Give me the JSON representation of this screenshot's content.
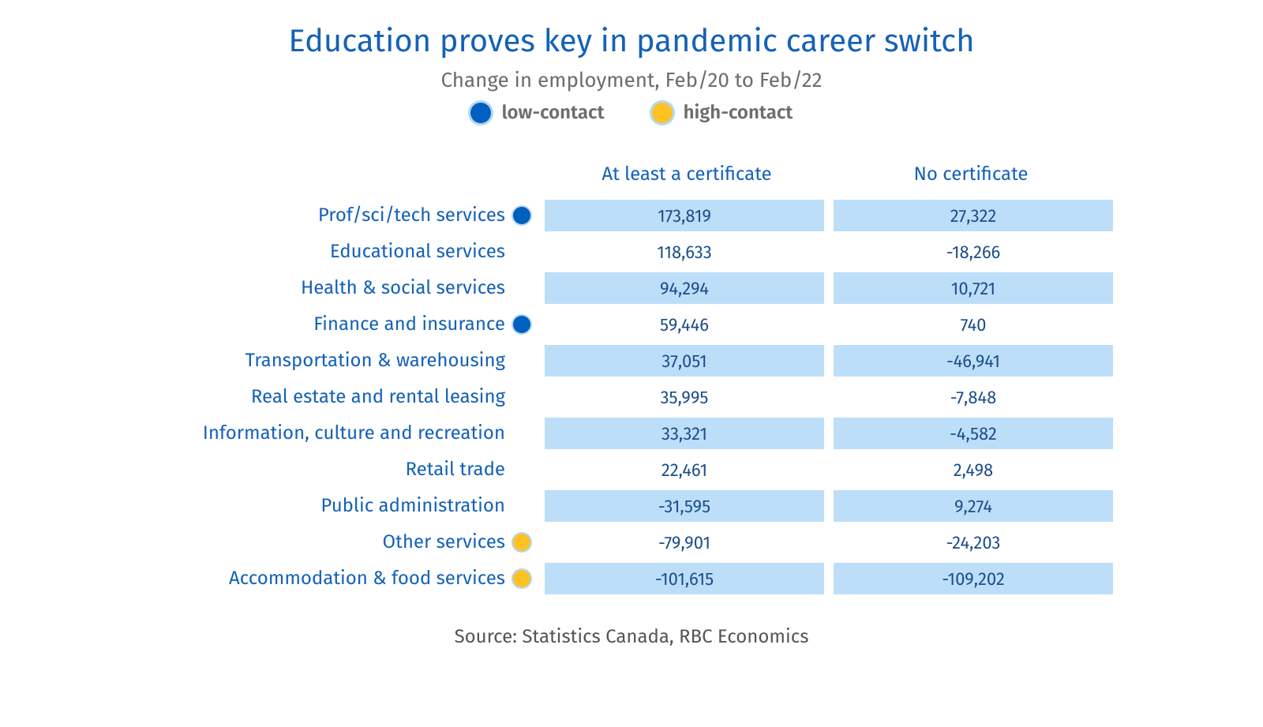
{
  "title": "Education proves key in pandemic career switch",
  "subtitle": "Change in employment, Feb/20 to Feb/22",
  "legend": [
    {
      "label": "low-contact",
      "color": "#0060c0",
      "border": "#b5d7f5"
    },
    {
      "label": "high-contact",
      "color": "#ffc224",
      "border": "#b5d7f5"
    }
  ],
  "columns": [
    "At least a certificate",
    "No certificate"
  ],
  "rows": [
    {
      "label": "Prof/sci/tech services",
      "marker": "low",
      "values": [
        "173,819",
        "27,322"
      ]
    },
    {
      "label": "Educational services",
      "marker": null,
      "values": [
        "118,633",
        "-18,266"
      ]
    },
    {
      "label": "Health & social services",
      "marker": null,
      "values": [
        "94,294",
        "10,721"
      ]
    },
    {
      "label": "Finance and insurance",
      "marker": "low",
      "values": [
        "59,446",
        "740"
      ]
    },
    {
      "label": "Transportation & warehousing",
      "marker": null,
      "values": [
        "37,051",
        "-46,941"
      ]
    },
    {
      "label": "Real estate and rental leasing",
      "marker": null,
      "values": [
        "35,995",
        "-7,848"
      ]
    },
    {
      "label": "Information, culture and recreation",
      "marker": null,
      "values": [
        "33,321",
        "-4,582"
      ]
    },
    {
      "label": "Retail trade",
      "marker": null,
      "values": [
        "22,461",
        "2,498"
      ]
    },
    {
      "label": "Public administration",
      "marker": null,
      "values": [
        "-31,595",
        "9,274"
      ]
    },
    {
      "label": "Other services",
      "marker": "high",
      "values": [
        "-79,901",
        "-24,203"
      ]
    },
    {
      "label": "Accommodation & food services",
      "marker": "high",
      "values": [
        "-101,615",
        "-109,202"
      ]
    }
  ],
  "source": "Source: Statistics Canada, RBC Economics",
  "style": {
    "title_color": "#1561b8",
    "subtitle_color": "#6d6d6d",
    "legend_label_color": "#6d6d6d",
    "header_color": "#1561b8",
    "row_label_color": "#1561b8",
    "cell_text_color": "#1c4e8a",
    "cell_bg_odd": "#bcdef9",
    "cell_bg_even": "#ffffff",
    "source_color": "#555555",
    "marker_low_fill": "#0060c0",
    "marker_high_fill": "#ffc224",
    "marker_border": "#b5d7f5",
    "title_fontsize": 40,
    "subtitle_fontsize": 26,
    "label_fontsize": 24,
    "cell_fontsize": 22
  }
}
